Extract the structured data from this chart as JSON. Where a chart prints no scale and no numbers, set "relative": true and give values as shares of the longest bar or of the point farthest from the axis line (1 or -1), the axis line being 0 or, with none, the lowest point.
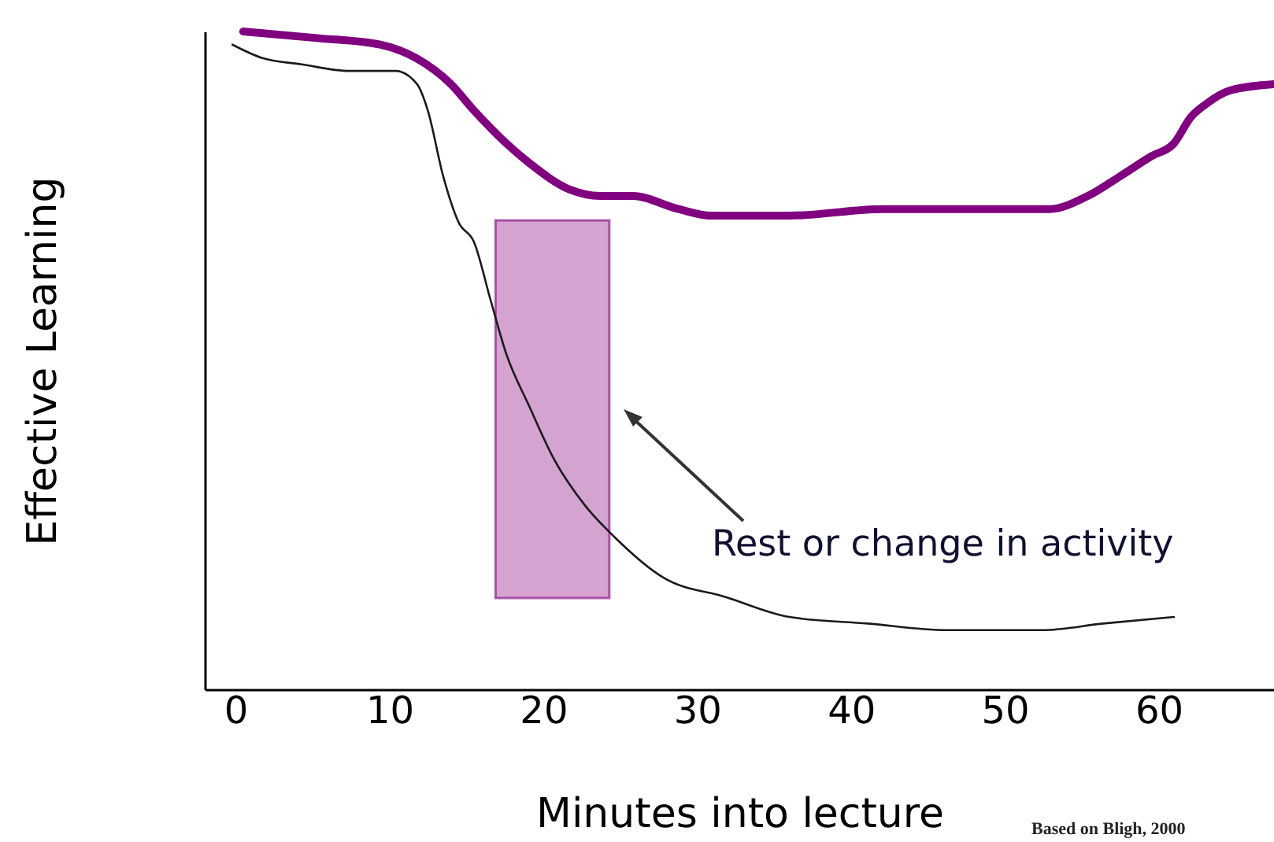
{
  "chart_data": {
    "type": "line",
    "xlabel": "Minutes into lecture",
    "ylabel": "Effective Learning",
    "relative": true,
    "xlim": [
      -2,
      67.5
    ],
    "xticks": [
      0,
      10,
      20,
      30,
      40,
      50,
      60
    ],
    "grid": false,
    "marker": "none",
    "line_style": "solid",
    "series": [
      {
        "color": "#800080",
        "x": [
          0.5,
          5.3,
          9.4,
          11.7,
          14.0,
          15.5,
          17.6,
          19.1,
          21.7,
          23.7,
          25.8,
          28.8,
          30.9,
          36.0,
          42.1,
          48.3,
          52.9,
          55.4,
          57.5,
          59.5,
          61.0,
          62.1,
          63.1,
          64.6,
          67.5
        ],
        "values": [
          1,
          0.99,
          0.98,
          0.96,
          0.92,
          0.88,
          0.83,
          0.8,
          0.76,
          0.75,
          0.75,
          0.73,
          0.72,
          0.72,
          0.73,
          0.73,
          0.73,
          0.75,
          0.78,
          0.81,
          0.83,
          0.87,
          0.89,
          0.91,
          0.92
        ]
      },
      {
        "color": "#1a1a1a",
        "x": [
          -0.2,
          1.7,
          4.3,
          7.4,
          10.4,
          11.8,
          12.5,
          13.5,
          14.5,
          15.5,
          16.6,
          17.6,
          19.1,
          20.7,
          22.7,
          24.7,
          27.8,
          31.9,
          36.0,
          41.1,
          46.2,
          49.3,
          52.4,
          56.4,
          61.0
        ],
        "values": [
          0.98,
          0.96,
          0.95,
          0.94,
          0.94,
          0.92,
          0.88,
          0.78,
          0.71,
          0.68,
          0.59,
          0.51,
          0.43,
          0.35,
          0.28,
          0.23,
          0.17,
          0.14,
          0.11,
          0.1,
          0.09,
          0.09,
          0.09,
          0.1,
          0.11
        ]
      }
    ],
    "bands": [
      {
        "axis": "x",
        "from": 16.9,
        "to": 24.3,
        "color": "#d4a3d0"
      }
    ],
    "annotations": [
      "Rest or change in activity",
      "Based on Bligh, 2000"
    ]
  }
}
